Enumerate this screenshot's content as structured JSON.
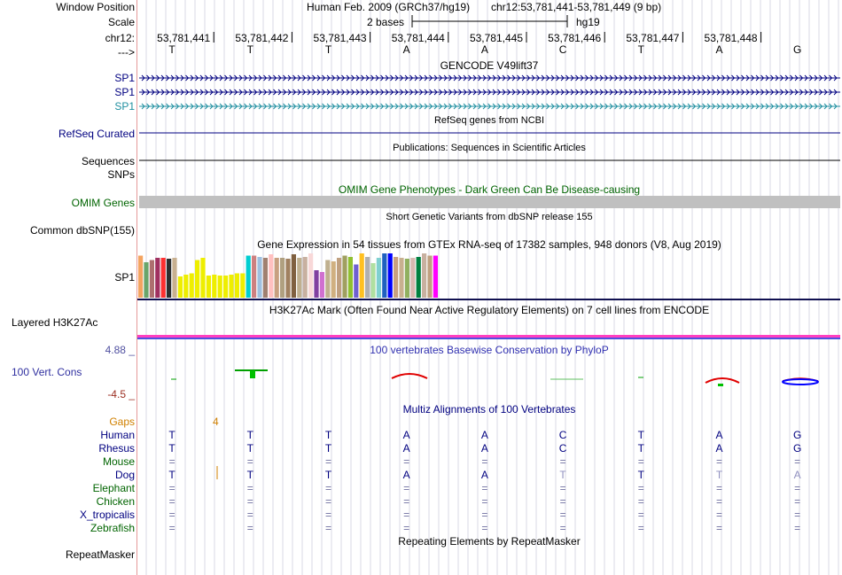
{
  "colors": {
    "navy": "#000080",
    "green": "#006400",
    "blue": "#3030b0",
    "orange": "#d08000",
    "phylop_max": "#5050a0",
    "phylop_min": "#9b2d20",
    "omim_bar": "#c0c0c0",
    "h3k27_pink": "#ff40c0",
    "h3k27_blue": "#5050e0",
    "teal": "#1f8fa0",
    "eq_gray": "#9090a0"
  },
  "header": {
    "window_position_label": "Window Position",
    "scale_label": "Scale",
    "chrom_label": "chr12:",
    "strand_label": "--->",
    "assembly_title": "Human Feb. 2009 (GRCh37/hg19)",
    "position": "chr12:53,781,441-53,781,449 (9 bp)",
    "scale_text": "2 bases",
    "scale_db": "hg19",
    "coordinates": [
      "53,781,441",
      "53,781,442",
      "53,781,443",
      "53,781,444",
      "53,781,445",
      "53,781,446",
      "53,781,447",
      "53,781,448"
    ],
    "bases": [
      "T",
      "T",
      "T",
      "A",
      "A",
      "C",
      "T",
      "A",
      "G"
    ]
  },
  "tracks": {
    "gencode": {
      "title": "GENCODE V49lift37",
      "items": [
        "SP1",
        "SP1",
        "SP1"
      ]
    },
    "refseq": {
      "title": "RefSeq genes from NCBI",
      "label": "RefSeq Curated"
    },
    "publications": {
      "title": "Publications: Sequences in Scientific Articles",
      "label": "Sequences",
      "label2": "SNPs"
    },
    "omim": {
      "title": "OMIM Gene Phenotypes - Dark Green Can Be Disease-causing",
      "label": "OMIM Genes"
    },
    "dbsnp": {
      "title": "Short Genetic Variants from dbSNP release 155",
      "label": "Common dbSNP(155)"
    },
    "gtex": {
      "title": "Gene Expression in 54 tissues from GTEx RNA-seq of 17382 samples, 948 donors (V8, Aug 2019)",
      "label": "SP1",
      "bars": [
        {
          "v": 0.95,
          "c": "#f4a460"
        },
        {
          "v": 0.8,
          "c": "#6aa56a"
        },
        {
          "v": 0.85,
          "c": "#ad6f6f"
        },
        {
          "v": 0.9,
          "c": "#a03060"
        },
        {
          "v": 0.9,
          "c": "#ff3030"
        },
        {
          "v": 0.88,
          "c": "#303030"
        },
        {
          "v": 0.9,
          "c": "#c8b090"
        },
        {
          "v": 0.48,
          "c": "#eeee00"
        },
        {
          "v": 0.52,
          "c": "#eeee00"
        },
        {
          "v": 0.55,
          "c": "#eeee00"
        },
        {
          "v": 0.85,
          "c": "#eeee00"
        },
        {
          "v": 0.9,
          "c": "#eeee00"
        },
        {
          "v": 0.5,
          "c": "#eeee00"
        },
        {
          "v": 0.52,
          "c": "#eeee00"
        },
        {
          "v": 0.5,
          "c": "#eeee00"
        },
        {
          "v": 0.5,
          "c": "#eeee00"
        },
        {
          "v": 0.52,
          "c": "#eeee00"
        },
        {
          "v": 0.55,
          "c": "#eeee00"
        },
        {
          "v": 0.55,
          "c": "#eeee00"
        },
        {
          "v": 0.95,
          "c": "#00ced1"
        },
        {
          "v": 0.95,
          "c": "#cd8080"
        },
        {
          "v": 0.92,
          "c": "#a0c0e0"
        },
        {
          "v": 0.9,
          "c": "#a08070"
        },
        {
          "v": 0.98,
          "c": "#ffc0c0"
        },
        {
          "v": 0.9,
          "c": "#c8a080"
        },
        {
          "v": 0.9,
          "c": "#b0a080"
        },
        {
          "v": 0.88,
          "c": "#a08060"
        },
        {
          "v": 0.98,
          "c": "#806040"
        },
        {
          "v": 0.9,
          "c": "#c0b090"
        },
        {
          "v": 0.92,
          "c": "#c8b0a0"
        },
        {
          "v": 1.0,
          "c": "#f8d8d8"
        },
        {
          "v": 0.62,
          "c": "#8040a0"
        },
        {
          "v": 0.58,
          "c": "#d070d0"
        },
        {
          "v": 0.85,
          "c": "#c0b090"
        },
        {
          "v": 0.82,
          "c": "#d0b080"
        },
        {
          "v": 0.9,
          "c": "#c0a080"
        },
        {
          "v": 0.95,
          "c": "#a0a060"
        },
        {
          "v": 0.92,
          "c": "#90c030"
        },
        {
          "v": 0.75,
          "c": "#7060d0"
        },
        {
          "v": 1.0,
          "c": "#ffc020"
        },
        {
          "v": 0.92,
          "c": "#b0b0b0"
        },
        {
          "v": 0.78,
          "c": "#b0e0a0"
        },
        {
          "v": 0.9,
          "c": "#80d0d0"
        },
        {
          "v": 1.0,
          "c": "#2060c0"
        },
        {
          "v": 1.0,
          "c": "#0000ff"
        },
        {
          "v": 0.92,
          "c": "#c8a080"
        },
        {
          "v": 0.9,
          "c": "#c8b090"
        },
        {
          "v": 0.88,
          "c": "#90b060"
        },
        {
          "v": 0.9,
          "c": "#d8b8b0"
        },
        {
          "v": 0.92,
          "c": "#008040"
        },
        {
          "v": 1.0,
          "c": "#c8b0a0"
        },
        {
          "v": 0.95,
          "c": "#c0a080"
        },
        {
          "v": 0.95,
          "c": "#ff00ff"
        }
      ]
    },
    "h3k27ac": {
      "title": "H3K27Ac Mark (Often Found Near Active Regulatory Elements) on 7 cell lines from ENCODE",
      "label": "Layered H3K27Ac"
    },
    "phylop": {
      "title": "100 vertebrates Basewise Conservation by PhyloP",
      "label": "100 Vert. Cons",
      "max": "4.88 _",
      "min": "-4.5 _"
    },
    "multiz": {
      "title": "Multiz Alignments of 100 Vertebrates",
      "gaps_label": "Gaps",
      "gap_count": "4",
      "species": [
        {
          "name": "Human",
          "color": "navy",
          "bases": [
            "T",
            "T",
            "T",
            "A",
            "A",
            "C",
            "T",
            "A",
            "G"
          ]
        },
        {
          "name": "Rhesus",
          "color": "navy",
          "bases": [
            "T",
            "T",
            "T",
            "A",
            "A",
            "C",
            "T",
            "A",
            "G"
          ]
        },
        {
          "name": "Mouse",
          "color": "green",
          "bases": [
            "=",
            "=",
            "=",
            "=",
            "=",
            "=",
            "=",
            "=",
            "="
          ]
        },
        {
          "name": "Dog",
          "color": "navy",
          "bases": [
            "T",
            "T",
            "T",
            "A",
            "A",
            "T",
            "T",
            "T",
            "A"
          ]
        },
        {
          "name": "Elephant",
          "color": "green",
          "bases": [
            "=",
            "=",
            "=",
            "=",
            "=",
            "=",
            "=",
            "=",
            "="
          ]
        },
        {
          "name": "Chicken",
          "color": "green",
          "bases": [
            "=",
            "=",
            "=",
            "=",
            "=",
            "=",
            "=",
            "=",
            "="
          ]
        },
        {
          "name": "X_tropicalis",
          "color": "navy",
          "bases": [
            "=",
            "=",
            "=",
            "=",
            "=",
            "=",
            "=",
            "=",
            "="
          ]
        },
        {
          "name": "Zebrafish",
          "color": "green",
          "bases": [
            "=",
            "=",
            "=",
            "=",
            "=",
            "=",
            "=",
            "=",
            "="
          ]
        }
      ]
    },
    "repeatmasker": {
      "title": "Repeating Elements by RepeatMasker",
      "label": "RepeatMasker"
    }
  }
}
